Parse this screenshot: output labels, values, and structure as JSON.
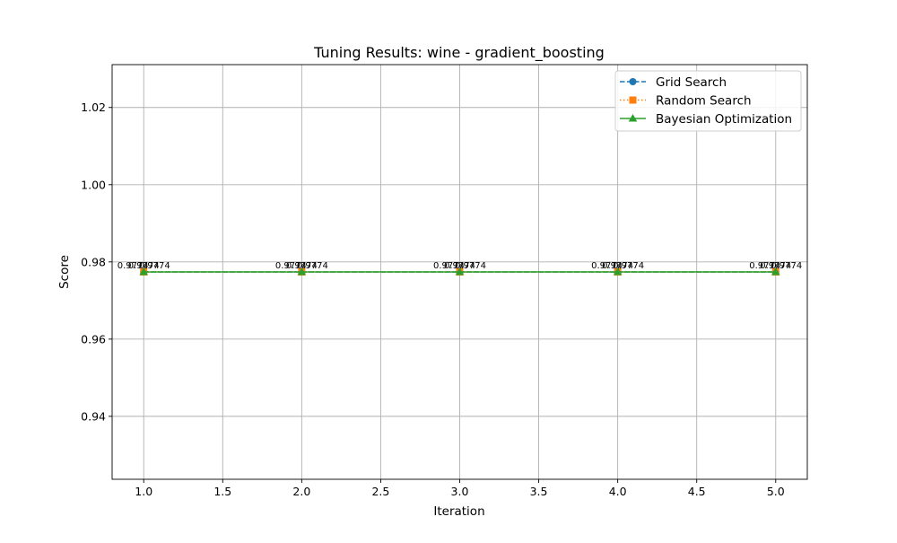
{
  "chart_data": {
    "type": "line",
    "title": "Tuning Results: wine - gradient_boosting",
    "xlabel": "Iteration",
    "ylabel": "Score",
    "xlim": [
      0.8,
      5.2
    ],
    "ylim": [
      0.9237,
      1.0311
    ],
    "xticks": [
      1.0,
      1.5,
      2.0,
      2.5,
      3.0,
      3.5,
      4.0,
      4.5,
      5.0
    ],
    "xtick_labels": [
      "1.0",
      "1.5",
      "2.0",
      "2.5",
      "3.0",
      "3.5",
      "4.0",
      "4.5",
      "5.0"
    ],
    "yticks": [
      0.94,
      0.96,
      0.98,
      1.0,
      1.02
    ],
    "ytick_labels": [
      "0.94",
      "0.96",
      "0.98",
      "1.00",
      "1.02"
    ],
    "grid": true,
    "legend_position": "upper right",
    "x": [
      1,
      2,
      3,
      4,
      5
    ],
    "series": [
      {
        "name": "Grid Search",
        "values": [
          0.9774,
          0.9774,
          0.9774,
          0.9774,
          0.9774
        ],
        "labels": [
          "0.9774",
          "0.9774",
          "0.9774",
          "0.9774",
          "0.9774"
        ],
        "color": "#1f77b4",
        "marker": "circle",
        "linestyle": "dashed"
      },
      {
        "name": "Random Search",
        "values": [
          0.9774,
          0.9774,
          0.9774,
          0.9774,
          0.9774
        ],
        "labels": [
          "0.9774",
          "0.9774",
          "0.9774",
          "0.9774",
          "0.9774"
        ],
        "color": "#ff7f0e",
        "marker": "square",
        "linestyle": "dotted"
      },
      {
        "name": "Bayesian Optimization",
        "values": [
          0.9774,
          0.9774,
          0.9774,
          0.9774,
          0.9774
        ],
        "labels": [
          "0.9774",
          "0.9774",
          "0.9774",
          "0.9774",
          "0.9774"
        ],
        "color": "#2ca02c",
        "marker": "triangle",
        "linestyle": "solid"
      }
    ]
  }
}
